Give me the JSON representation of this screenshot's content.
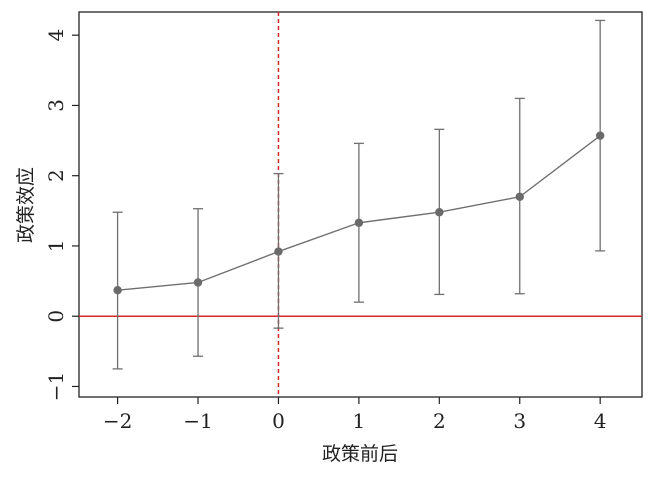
{
  "chart_data": {
    "type": "line",
    "title": "",
    "xlabel": "政策前后",
    "ylabel": "政策效应",
    "x": [
      -2,
      -1,
      0,
      1,
      2,
      3,
      4
    ],
    "xticks": [
      -2,
      -1,
      0,
      1,
      2,
      3,
      4
    ],
    "xtick_labels": [
      "−2",
      "−1",
      "0",
      "1",
      "2",
      "3",
      "4"
    ],
    "yticks": [
      -1,
      0,
      1,
      2,
      3,
      4
    ],
    "ytick_labels": [
      "−1",
      "0",
      "1",
      "2",
      "3",
      "4"
    ],
    "xlim": [
      -2.48,
      4.52
    ],
    "ylim": [
      -1.15,
      4.33
    ],
    "series": [
      {
        "values": [
          0.37,
          0.48,
          0.92,
          1.33,
          1.48,
          1.7,
          2.57
        ],
        "ci_lower": [
          -0.75,
          -0.57,
          -0.17,
          0.2,
          0.31,
          0.32,
          0.93
        ],
        "ci_upper": [
          1.48,
          1.53,
          2.03,
          2.46,
          2.66,
          3.1,
          4.21
        ],
        "color": "#707070"
      }
    ],
    "reference_lines": [
      {
        "axis": "y",
        "value": 0,
        "style": "solid",
        "color": "#d62728"
      },
      {
        "axis": "x",
        "value": 0,
        "style": "dashed",
        "color": "#d62728"
      }
    ],
    "grid": false,
    "legend": "none"
  }
}
